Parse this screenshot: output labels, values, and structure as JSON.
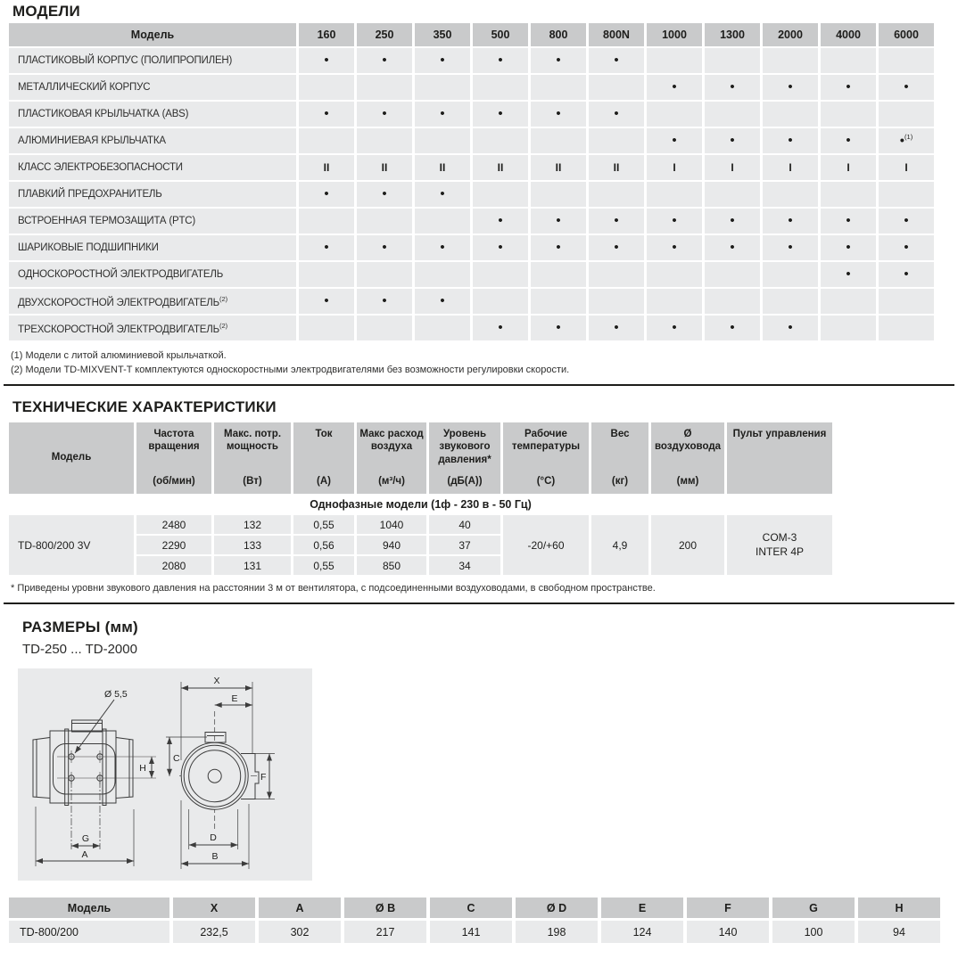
{
  "page": {
    "models_heading": "МОДЕЛИ",
    "tech_heading": "ТЕХНИЧЕСКИЕ ХАРАКТЕРИСТИКИ",
    "dims_heading": "РАЗМЕРЫ (мм)",
    "dims_subtitle": "TD-250 ... TD-2000"
  },
  "colors": {
    "header_gray": "#c9cacb",
    "cell_gray": "#e9eaeb",
    "text": "#1d1d1b"
  },
  "models_table": {
    "header": [
      "Модель",
      "160",
      "250",
      "350",
      "500",
      "800",
      "800N",
      "1000",
      "1300",
      "2000",
      "4000",
      "6000"
    ],
    "rows": [
      {
        "label": "ПЛАСТИКОВЫЙ КОРПУС (ПОЛИПРОПИЛЕН)",
        "sup": "",
        "cells": [
          "•",
          "•",
          "•",
          "•",
          "•",
          "•",
          "",
          "",
          "",
          "",
          ""
        ]
      },
      {
        "label": "МЕТАЛЛИЧЕСКИЙ КОРПУС",
        "sup": "",
        "cells": [
          "",
          "",
          "",
          "",
          "",
          "",
          "•",
          "•",
          "•",
          "•",
          "•"
        ]
      },
      {
        "label": "ПЛАСТИКОВАЯ КРЫЛЬЧАТКА (ABS)",
        "sup": "",
        "cells": [
          "•",
          "•",
          "•",
          "•",
          "•",
          "•",
          "",
          "",
          "",
          "",
          ""
        ]
      },
      {
        "label": "АЛЮМИНИЕВАЯ КРЫЛЬЧАТКА",
        "sup": "",
        "cells": [
          "",
          "",
          "",
          "",
          "",
          "",
          "•",
          "•",
          "•",
          "•",
          "•(1)"
        ]
      },
      {
        "label": "КЛАСС ЭЛЕКТРОБЕЗОПАСНОСТИ",
        "sup": "",
        "cells": [
          "II",
          "II",
          "II",
          "II",
          "II",
          "II",
          "I",
          "I",
          "I",
          "I",
          "I"
        ]
      },
      {
        "label": "ПЛАВКИЙ ПРЕДОХРАНИТЕЛЬ",
        "sup": "",
        "cells": [
          "•",
          "•",
          "•",
          "",
          "",
          "",
          "",
          "",
          "",
          "",
          ""
        ]
      },
      {
        "label": "ВСТРОЕННАЯ ТЕРМОЗАЩИТА (PTC)",
        "sup": "",
        "cells": [
          "",
          "",
          "",
          "•",
          "•",
          "•",
          "•",
          "•",
          "•",
          "•",
          "•"
        ]
      },
      {
        "label": "ШАРИКОВЫЕ ПОДШИПНИКИ",
        "sup": "",
        "cells": [
          "•",
          "•",
          "•",
          "•",
          "•",
          "•",
          "•",
          "•",
          "•",
          "•",
          "•"
        ]
      },
      {
        "label": "ОДНОСКОРОСТНОЙ ЭЛЕКТРОДВИГАТЕЛЬ",
        "sup": "",
        "cells": [
          "",
          "",
          "",
          "",
          "",
          "",
          "",
          "",
          "",
          "•",
          "•"
        ]
      },
      {
        "label": "ДВУХСКОРОСТНОЙ ЭЛЕКТРОДВИГАТЕЛЬ",
        "sup": "(2)",
        "cells": [
          "•",
          "•",
          "•",
          "",
          "",
          "",
          "",
          "",
          "",
          "",
          ""
        ]
      },
      {
        "label": "ТРЕХСКОРОСТНОЙ ЭЛЕКТРОДВИГАТЕЛЬ",
        "sup": "(2)",
        "cells": [
          "",
          "",
          "",
          "•",
          "•",
          "•",
          "•",
          "•",
          "•",
          "",
          ""
        ]
      }
    ],
    "notes": [
      "(1) Модели с литой алюминиевой крыльчаткой.",
      "(2) Модели TD-MIXVENT-T комплектуются односкоростными электродвигателями без возможности регулировки скорости."
    ]
  },
  "tech_table": {
    "model_col_header": "Модель",
    "columns": [
      {
        "name": "Частота вращения",
        "unit": "(об/мин)"
      },
      {
        "name": "Макс. потр. мощность",
        "unit": "(Вт)"
      },
      {
        "name": "Ток",
        "unit": "(А)"
      },
      {
        "name": "Макс расход воздуха",
        "unit": "(м³/ч)"
      },
      {
        "name": "Уровень звукового давления*",
        "unit": "(дБ(А))"
      },
      {
        "name": "Рабочие температуры",
        "unit": "(°C)"
      },
      {
        "name": "Вес",
        "unit": "(кг)"
      },
      {
        "name": "Ø воздуховода",
        "unit": "(мм)"
      },
      {
        "name": "Пульт управления",
        "unit": ""
      }
    ],
    "group_header": "Однофазные модели (1ф - 230 в - 50 Гц)",
    "model": "TD-800/200 3V",
    "rows": [
      [
        "2480",
        "132",
        "0,55",
        "1040",
        "40"
      ],
      [
        "2290",
        "133",
        "0,56",
        "940",
        "37"
      ],
      [
        "2080",
        "131",
        "0,55",
        "850",
        "34"
      ]
    ],
    "merged": [
      "-20/+60",
      "4,9",
      "200"
    ],
    "remote": [
      "COM-3",
      "INTER 4P"
    ],
    "note": "* Приведены уровни звукового давления на расстоянии 3 м от вентилятора, с подсоединенными воздуховодами, в свободном пространстве."
  },
  "drawing": {
    "labels": {
      "diameter": "Ø 5,5",
      "x": "X",
      "e": "E",
      "c": "C",
      "f": "F",
      "d": "D",
      "b": "B",
      "g": "G",
      "a": "A",
      "h": "H"
    }
  },
  "dims_table": {
    "headers": [
      "Модель",
      "X",
      "A",
      "Ø B",
      "C",
      "Ø D",
      "E",
      "F",
      "G",
      "H"
    ],
    "row": [
      "TD-800/200",
      "232,5",
      "302",
      "217",
      "141",
      "198",
      "124",
      "140",
      "100",
      "94"
    ]
  }
}
